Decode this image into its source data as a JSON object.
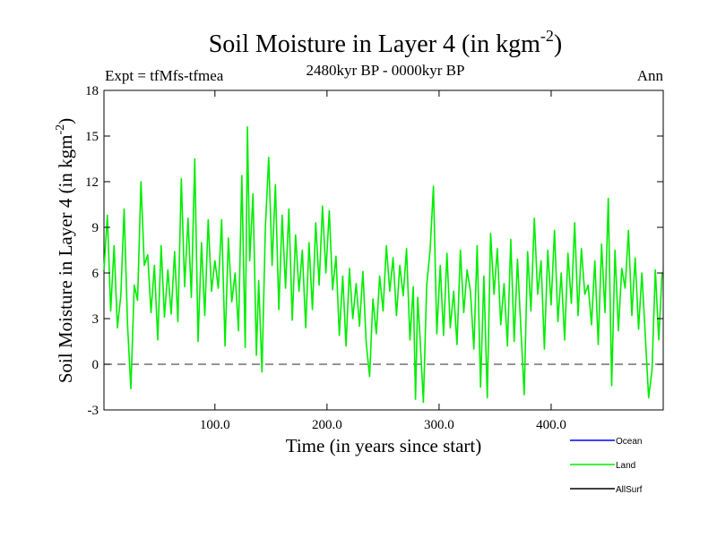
{
  "chart_data": {
    "type": "line",
    "title": "Soil Moisture in Layer 4 (in kgm",
    "title_sup": "-2",
    "title_close": ")",
    "subtitle": "2480kyr BP - 0000kyr BP",
    "left_label": "Expt = tfMfs-tfmea",
    "right_label": "Ann",
    "xlabel": "Time (in years since start)",
    "ylabel": "Soil Moisture in Layer 4 (in kgm",
    "ylabel_sup": "-2",
    "ylabel_close": ")",
    "xlim": [
      1,
      500
    ],
    "ylim": [
      -3,
      18
    ],
    "x_ticks": [
      100,
      200,
      300,
      400
    ],
    "x_tick_labels": [
      "100.0",
      "200.0",
      "300.0",
      "400.0"
    ],
    "y_ticks": [
      -3,
      0,
      3,
      6,
      9,
      12,
      15,
      18
    ],
    "y_tick_labels": [
      "-3",
      "0",
      "3",
      "6",
      "9",
      "12",
      "15",
      "18"
    ],
    "reference_line": {
      "y": 0,
      "style": "dashed",
      "color": "#555555"
    },
    "legend": [
      {
        "name": "Ocean",
        "color": "#0000ff"
      },
      {
        "name": "Land",
        "color": "#00ee00"
      },
      {
        "name": "AllSurf",
        "color": "#000000"
      }
    ],
    "series": [
      {
        "name": "Land",
        "color": "#00ee00",
        "x": [
          1,
          4,
          7,
          10,
          13,
          16,
          19,
          22,
          25,
          28,
          31,
          34,
          37,
          40,
          43,
          46,
          49,
          52,
          55,
          58,
          61,
          64,
          67,
          70,
          73,
          76,
          79,
          82,
          85,
          88,
          91,
          94,
          97,
          100,
          103,
          106,
          109,
          112,
          115,
          118,
          121,
          124,
          127,
          129,
          131,
          134,
          137,
          139,
          142,
          145,
          148,
          151,
          154,
          157,
          160,
          163,
          166,
          169,
          172,
          175,
          178,
          181,
          184,
          187,
          190,
          193,
          196,
          199,
          202,
          205,
          208,
          211,
          214,
          217,
          220,
          223,
          226,
          229,
          232,
          235,
          238,
          241,
          244,
          247,
          250,
          253,
          256,
          259,
          262,
          265,
          268,
          271,
          274,
          277,
          279,
          281,
          283,
          286,
          289,
          292,
          295,
          298,
          301,
          304,
          307,
          310,
          313,
          316,
          319,
          322,
          325,
          328,
          331,
          334,
          337,
          340,
          343,
          346,
          349,
          352,
          355,
          358,
          361,
          364,
          367,
          370,
          373,
          376,
          379,
          382,
          385,
          388,
          391,
          394,
          397,
          400,
          403,
          406,
          409,
          412,
          415,
          418,
          421,
          424,
          427,
          430,
          433,
          436,
          439,
          442,
          445,
          448,
          451,
          454,
          457,
          460,
          463,
          466,
          469,
          472,
          475,
          478,
          481,
          484,
          487,
          490,
          493,
          496,
          499
        ],
        "y": [
          6.2,
          9.8,
          3.5,
          7.8,
          2.4,
          4.5,
          10.2,
          2.6,
          -1.6,
          5.2,
          4.2,
          12.0,
          6.5,
          7.2,
          3.4,
          6.5,
          1.6,
          7.8,
          3.1,
          6.2,
          3.3,
          7.4,
          2.8,
          12.2,
          5.1,
          9.6,
          4.4,
          13.5,
          1.5,
          8.0,
          3.2,
          9.5,
          4.8,
          6.8,
          5.0,
          9.5,
          1.2,
          8.3,
          4.1,
          6.0,
          2.2,
          12.4,
          1.1,
          15.6,
          6.8,
          11.2,
          0.6,
          5.5,
          -0.5,
          9.0,
          13.6,
          6.5,
          11.8,
          3.6,
          9.8,
          5.0,
          10.2,
          2.9,
          8.5,
          4.8,
          7.5,
          2.4,
          8.0,
          3.6,
          9.3,
          5.2,
          10.4,
          6.0,
          10.1,
          4.9,
          7.1,
          1.9,
          5.8,
          1.2,
          6.3,
          3.0,
          5.3,
          2.5,
          6.1,
          1.4,
          -0.8,
          4.3,
          2.0,
          5.8,
          3.5,
          7.8,
          4.8,
          7.0,
          3.2,
          6.5,
          4.5,
          7.6,
          1.6,
          5.1,
          -2.3,
          4.4,
          1.8,
          -2.5,
          5.2,
          7.5,
          11.7,
          2.0,
          6.5,
          1.9,
          7.3,
          2.4,
          4.8,
          1.3,
          7.5,
          3.4,
          6.2,
          4.8,
          1.0,
          7.8,
          -1.5,
          5.8,
          -2.2,
          8.6,
          4.6,
          7.6,
          2.6,
          5.3,
          1.2,
          8.2,
          1.5,
          6.9,
          2.3,
          -2.0,
          7.4,
          3.5,
          9.6,
          4.6,
          6.8,
          1.0,
          7.5,
          3.9,
          8.8,
          2.8,
          6.0,
          1.6,
          7.3,
          4.0,
          9.3,
          3.2,
          7.6,
          4.6,
          5.2,
          2.6,
          6.8,
          1.3,
          7.9,
          3.4,
          10.9,
          -1.4,
          7.5,
          2.2,
          6.3,
          5.0,
          8.8,
          3.2,
          7.0,
          2.3,
          6.0,
          1.9,
          -2.2,
          -0.4,
          6.2,
          1.6,
          6.0
        ]
      }
    ]
  }
}
